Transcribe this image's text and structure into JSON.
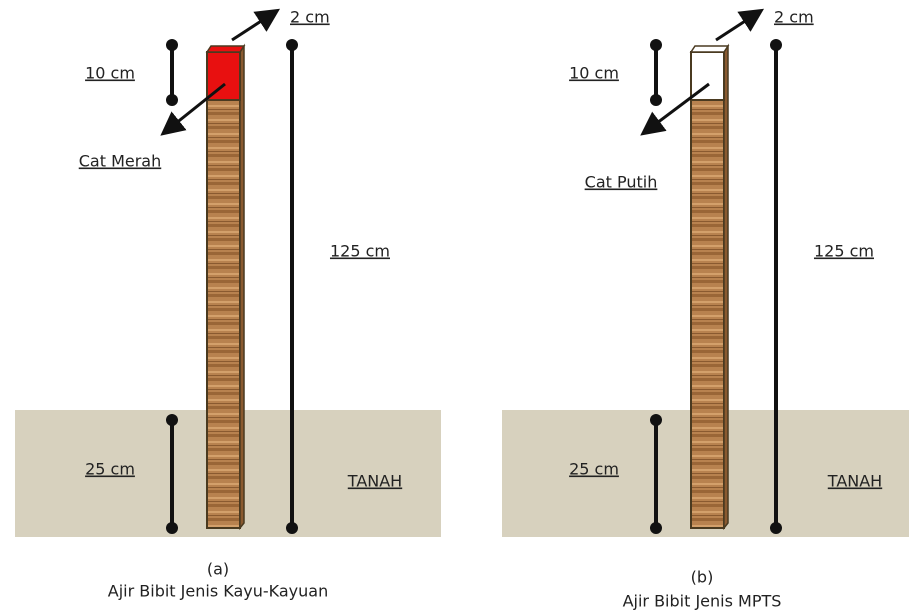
{
  "panels": [
    {
      "width_label": "2 cm",
      "top_label": "10 cm",
      "paint_label": "Cat Merah",
      "height_label": "125 cm",
      "depth_label": "25 cm",
      "ground_label": "TANAH",
      "letter": "(a)",
      "caption": "Ajir Bibit Jenis Kayu-Kayuan"
    },
    {
      "width_label": "2 cm",
      "top_label": "10 cm",
      "paint_label": "Cat Putih",
      "height_label": "125 cm",
      "depth_label": "25 cm",
      "ground_label": "TANAH",
      "letter": "(b)",
      "caption": "Ajir Bibit Jenis MPTS"
    }
  ]
}
